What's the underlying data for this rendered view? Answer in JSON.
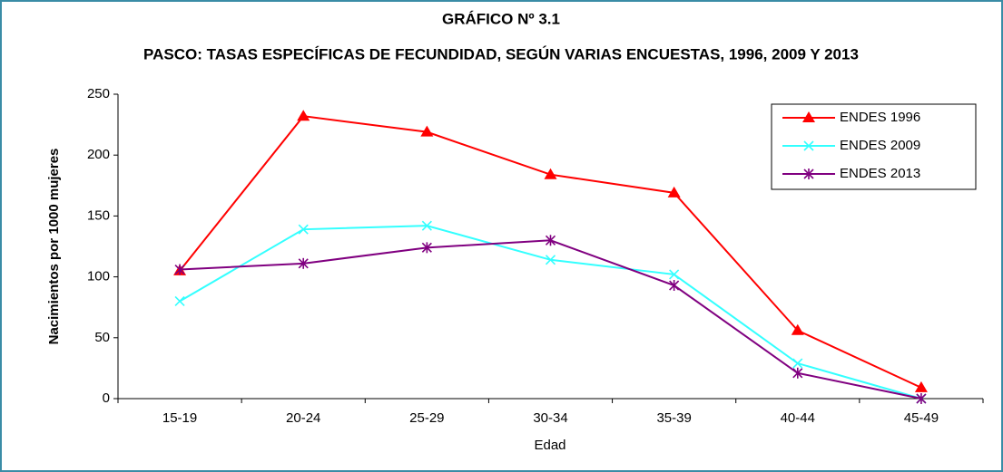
{
  "chart_data": {
    "type": "line",
    "title": "GRÁFICO Nº 3.1",
    "subtitle": "PASCO: TASAS ESPECÍFICAS DE FECUNDIDAD, SEGÚN  VARIAS ENCUESTAS, 1996, 2009 Y 2013",
    "x_label": "Edad",
    "y_label": "Nacimientos por 1000 mujeres",
    "categories": [
      "15-19",
      "20-24",
      "25-29",
      "30-34",
      "35-39",
      "40-44",
      "45-49"
    ],
    "series": [
      {
        "name": "ENDES 1996",
        "color": "#ff0000",
        "marker": "triangle",
        "values": [
          105,
          232,
          219,
          184,
          169,
          56,
          9
        ]
      },
      {
        "name": "ENDES 2009",
        "color": "#33ffff",
        "marker": "x",
        "values": [
          80,
          139,
          142,
          114,
          102,
          29,
          0
        ]
      },
      {
        "name": "ENDES 2013",
        "color": "#800080",
        "marker": "asterisk",
        "values": [
          106,
          111,
          124,
          130,
          93,
          21,
          0
        ]
      }
    ],
    "ylim": [
      0,
      250
    ],
    "yticks": [
      0,
      50,
      100,
      150,
      200,
      250
    ],
    "grid": false,
    "legend": "upper right"
  }
}
